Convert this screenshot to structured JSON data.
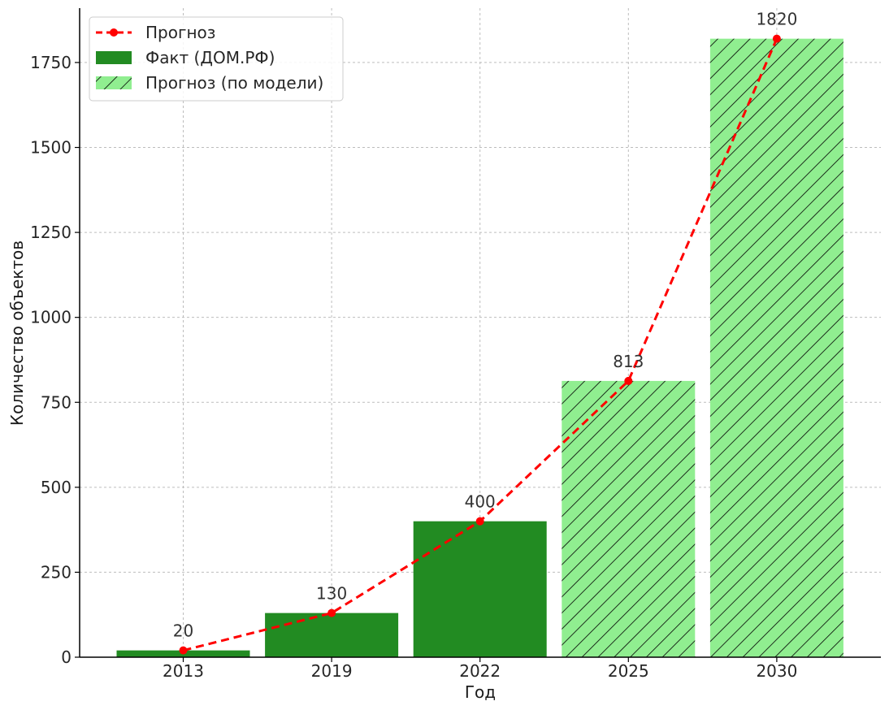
{
  "chart_data": {
    "type": "bar",
    "categories": [
      "2013",
      "2019",
      "2022",
      "2025",
      "2030"
    ],
    "series": [
      {
        "name": "Факт (ДОМ.РФ)",
        "kind": "bar",
        "style": "solid",
        "color": "#228b22",
        "values": [
          20,
          130,
          400,
          null,
          null
        ]
      },
      {
        "name": "Прогноз (по модели)",
        "kind": "bar",
        "style": "hatched",
        "color": "#90ee90",
        "hatch_color": "#000000",
        "values": [
          null,
          null,
          null,
          813,
          1820
        ]
      },
      {
        "name": "Прогноз",
        "kind": "line",
        "style": "dashed",
        "marker": "circle",
        "color": "#ff0000",
        "values": [
          20,
          130,
          400,
          813,
          1820
        ]
      }
    ],
    "data_labels": [
      "20",
      "130",
      "400",
      "813",
      "1820"
    ],
    "xlabel": "Год",
    "ylabel": "Количество объектов",
    "ylim": [
      0,
      1910
    ],
    "yticks": [
      0,
      250,
      500,
      750,
      1000,
      1250,
      1500,
      1750
    ],
    "grid": true,
    "legend_position": "top-left"
  }
}
